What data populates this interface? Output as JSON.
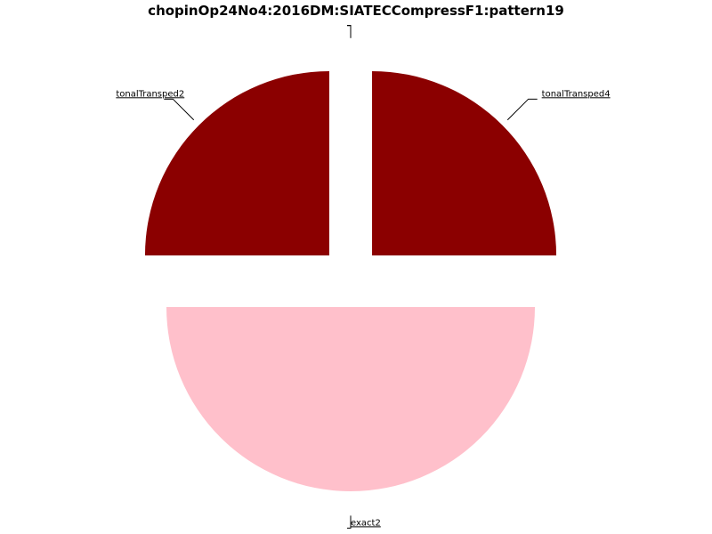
{
  "chart_data": {
    "type": "pie",
    "title": "chopinOp24No4:2016DM:SIATECCompressF1:pattern19",
    "slices": [
      {
        "label": "tonalTransped2",
        "value": 1,
        "color": "#8b0000"
      },
      {
        "label": "exact2",
        "value": 2,
        "color": "#ffc0cb"
      },
      {
        "label": "tonalTransped4",
        "value": 1,
        "color": "#8b0000"
      },
      {
        "label": "",
        "value": 0,
        "color": "#000000"
      },
      {
        "label": "",
        "value": 0,
        "color": "#000000"
      },
      {
        "label": "",
        "value": 0,
        "color": "#000000"
      }
    ],
    "exploded": true,
    "legend": "none"
  }
}
